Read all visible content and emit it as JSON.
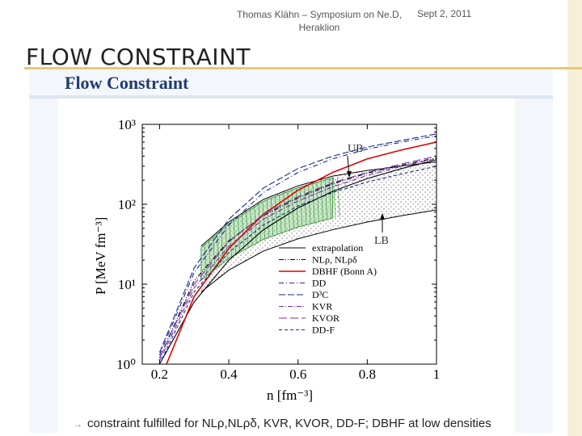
{
  "header": {
    "author_conf": "Thomas Klähn – Symposium on Ne.D, Heraklion",
    "author_line1": "Thomas Klähn – Symposium on Ne.D,",
    "author_line2": "Heraklion",
    "date": "Sept 2, 2011"
  },
  "slide": {
    "title": "FLOW CONSTRAINT"
  },
  "figure": {
    "title": "Flow Constraint"
  },
  "chart_data": {
    "type": "line",
    "title": "Flow Constraint",
    "xlabel": "n  [fm⁻³]",
    "ylabel": "P  [MeV fm⁻³]",
    "xlim": [
      0.15,
      1.0
    ],
    "ylim": [
      1,
      1000
    ],
    "yscale": "log",
    "x_ticks": [
      "0.2",
      "0.4",
      "0.6",
      "0.8",
      "1"
    ],
    "x_tick_values": [
      0.2,
      0.4,
      0.6,
      0.8,
      1.0
    ],
    "y_ticks": [
      "10⁰",
      "10¹",
      "10²",
      "10³"
    ],
    "y_tick_values": [
      1,
      10,
      100,
      1000
    ],
    "annotations": [
      "UB",
      "LB"
    ],
    "legend_position": "lower-right",
    "band": {
      "x": [
        0.32,
        0.4,
        0.5,
        0.6,
        0.7,
        0.8,
        0.9,
        1.0
      ],
      "lower": [
        8,
        15,
        26,
        37,
        48,
        60,
        72,
        85
      ],
      "upper": [
        30,
        60,
        115,
        170,
        225,
        265,
        300,
        340
      ]
    },
    "series": [
      {
        "name": "extrapolation",
        "color": "#000000",
        "dash": "",
        "x": [
          0.2,
          0.3,
          0.4,
          0.5,
          0.6,
          0.7,
          0.8,
          0.9,
          1.0
        ],
        "values": [
          1.0,
          6,
          20,
          48,
          90,
          145,
          210,
          280,
          360
        ]
      },
      {
        "name": "NLρ, NLρδ",
        "color": "#000000",
        "dash": "6,2,1,2,1,2",
        "x": [
          0.2,
          0.3,
          0.4,
          0.5,
          0.6,
          0.7,
          0.8,
          0.9,
          1.0
        ],
        "values": [
          1.2,
          11,
          35,
          72,
          120,
          180,
          245,
          310,
          380
        ]
      },
      {
        "name": "DBHF (Bonn A)",
        "color": "#e00000",
        "dash": "",
        "x": [
          0.22,
          0.3,
          0.4,
          0.5,
          0.6,
          0.7,
          0.8,
          0.9,
          1.0
        ],
        "values": [
          1.0,
          7,
          28,
          75,
          150,
          250,
          370,
          480,
          600
        ]
      },
      {
        "name": "DD",
        "color": "#1a2b8a",
        "dash": "6,3,1,3",
        "x": [
          0.2,
          0.3,
          0.4,
          0.5,
          0.6,
          0.7,
          0.8,
          0.9,
          1.0
        ],
        "values": [
          1.3,
          14,
          55,
          140,
          250,
          370,
          490,
          600,
          720
        ]
      },
      {
        "name": "D³C",
        "color": "#1a2b8a",
        "dash": "8,3",
        "x": [
          0.2,
          0.3,
          0.4,
          0.5,
          0.6,
          0.7,
          0.8,
          0.9,
          1.0
        ],
        "values": [
          1.4,
          16,
          65,
          160,
          280,
          400,
          520,
          630,
          760
        ]
      },
      {
        "name": "KVR",
        "color": "#7a2bb0",
        "dash": "6,2,1,2",
        "x": [
          0.2,
          0.3,
          0.4,
          0.5,
          0.6,
          0.7,
          0.8,
          0.9,
          1.0
        ],
        "values": [
          1.1,
          9,
          30,
          65,
          110,
          165,
          230,
          300,
          370
        ]
      },
      {
        "name": "KVOR",
        "color": "#7a2bb0",
        "dash": "10,4",
        "x": [
          0.2,
          0.3,
          0.4,
          0.5,
          0.6,
          0.7,
          0.8,
          0.9,
          1.0
        ],
        "values": [
          1.2,
          10,
          34,
          75,
          125,
          185,
          250,
          320,
          400
        ]
      },
      {
        "name": "DD-F",
        "color": "#1a2b8a",
        "dash": "4,3",
        "x": [
          0.2,
          0.3,
          0.4,
          0.5,
          0.6,
          0.7,
          0.8,
          0.9,
          1.0
        ],
        "values": [
          1.0,
          8,
          25,
          55,
          95,
          140,
          190,
          240,
          300
        ]
      }
    ]
  },
  "footer": {
    "note": "constraint fulfilled for NLρ,NLρδ, KVR, KVOR, DD-F; DBHF at low densities"
  }
}
